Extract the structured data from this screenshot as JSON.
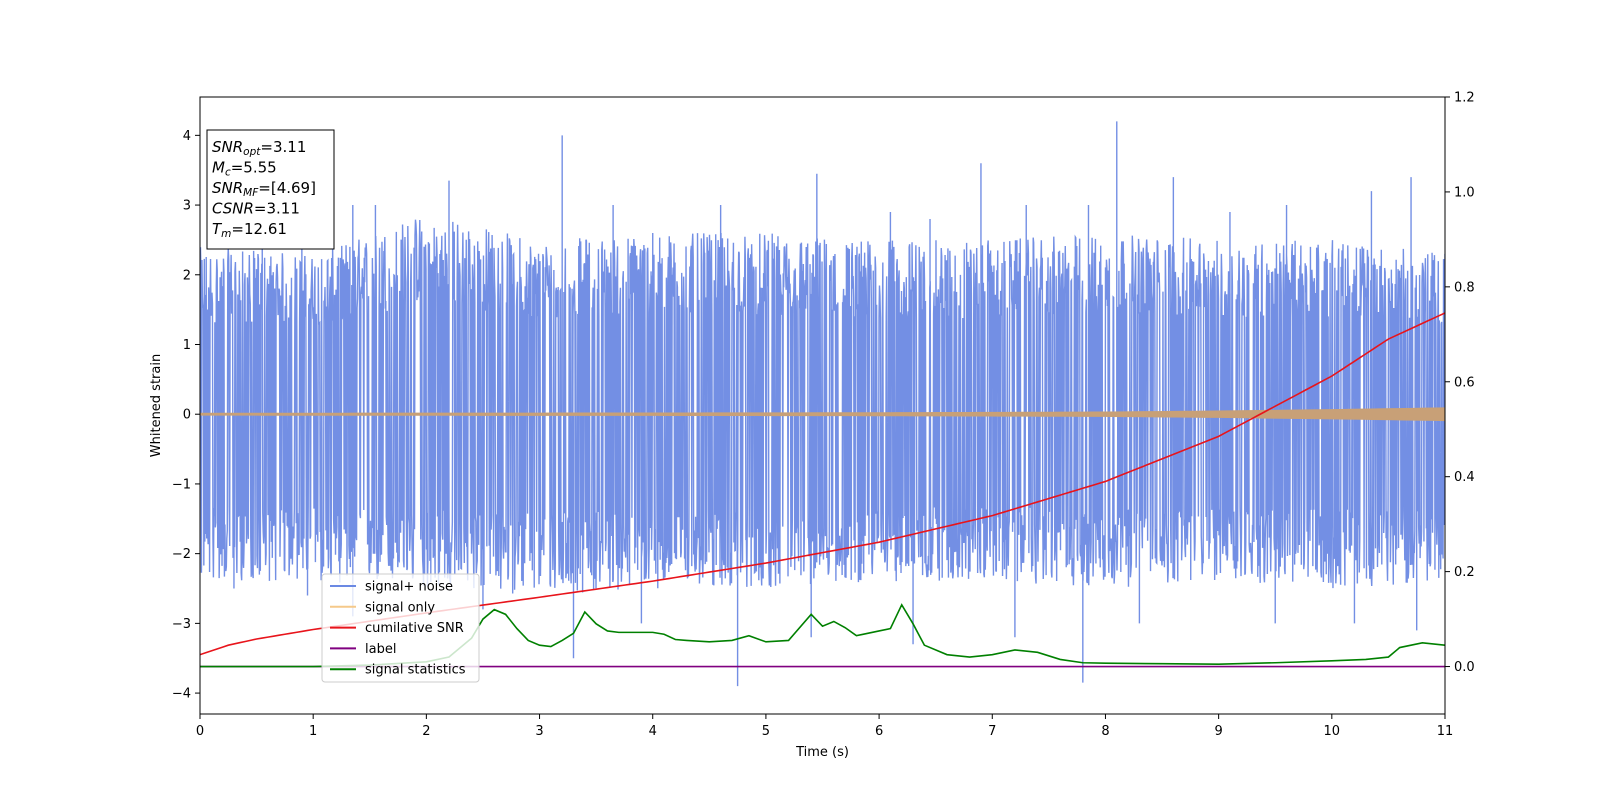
{
  "chart_data": {
    "type": "line",
    "xlabel": "Time (s)",
    "ylabel": "Whitened strain",
    "xlim": [
      0,
      11
    ],
    "ylim": [
      -4.3,
      4.55
    ],
    "y2lim": [
      -0.1,
      1.2
    ],
    "xticks": [
      0,
      1,
      2,
      3,
      4,
      5,
      6,
      7,
      8,
      9,
      10,
      11
    ],
    "yticks": [
      -4,
      -3,
      -2,
      -1,
      0,
      1,
      2,
      3,
      4
    ],
    "y2ticks": [
      0.0,
      0.2,
      0.4,
      0.6,
      0.8,
      1.0,
      1.2
    ],
    "y2tick_labels": [
      "0.0",
      "0.2",
      "0.4",
      "0.6",
      "0.8",
      "1.0",
      "1.2"
    ],
    "info_box": [
      {
        "main": "SNR",
        "sub": "opt",
        "rest": "=3.11"
      },
      {
        "main": "M",
        "sub": "c",
        "rest": "=5.55"
      },
      {
        "main": "SNR",
        "sub": "MF",
        "rest": "=[4.69]"
      },
      {
        "main": "CSNR",
        "sub": "",
        "rest": "=3.11"
      },
      {
        "main": "T",
        "sub": "m",
        "rest": "=12.61"
      }
    ],
    "legend": {
      "placement": "lower-left",
      "entries": [
        {
          "label": "signal+ noise",
          "color": "#6b89e3"
        },
        {
          "label": "signal only",
          "color": "#f5c98a"
        },
        {
          "label": "cumilative SNR",
          "color": "#e8141b"
        },
        {
          "label": "label",
          "color": "#800080"
        },
        {
          "label": "signal statistics",
          "color": "#008000"
        }
      ]
    },
    "series": [
      {
        "name": "signal+ noise",
        "axis": "left",
        "color": "#6b89e3",
        "envelope": {
          "x": [
            0,
            1,
            2,
            3,
            4,
            5,
            6,
            7,
            8,
            9,
            10,
            11
          ],
          "upper": [
            2.4,
            2.3,
            2.9,
            2.5,
            2.6,
            2.6,
            2.5,
            2.5,
            2.6,
            2.5,
            2.5,
            2.3
          ],
          "lower": [
            -2.4,
            -2.4,
            -2.5,
            -2.6,
            -2.5,
            -2.5,
            -2.4,
            -2.4,
            -2.5,
            -2.4,
            -2.5,
            -2.4
          ]
        },
        "spikes": [
          [
            0.55,
            2.4
          ],
          [
            0.9,
            2.7
          ],
          [
            1.35,
            3.0
          ],
          [
            1.55,
            3.0
          ],
          [
            2.2,
            3.35
          ],
          [
            3.2,
            4.0
          ],
          [
            3.65,
            3.0
          ],
          [
            4.0,
            2.6
          ],
          [
            4.6,
            3.0
          ],
          [
            5.45,
            3.45
          ],
          [
            6.1,
            2.9
          ],
          [
            6.45,
            2.8
          ],
          [
            6.9,
            3.6
          ],
          [
            7.3,
            3.0
          ],
          [
            7.85,
            3.0
          ],
          [
            8.1,
            4.2
          ],
          [
            8.6,
            3.4
          ],
          [
            9.1,
            2.9
          ],
          [
            9.6,
            3.0
          ],
          [
            10.35,
            3.2
          ],
          [
            10.7,
            3.4
          ],
          [
            11.0,
            2.3
          ],
          [
            0.3,
            -2.5
          ],
          [
            0.95,
            -2.6
          ],
          [
            1.35,
            -2.9
          ],
          [
            2.5,
            -2.8
          ],
          [
            3.3,
            -3.5
          ],
          [
            3.9,
            -3.0
          ],
          [
            4.75,
            -3.9
          ],
          [
            5.4,
            -3.2
          ],
          [
            6.3,
            -3.3
          ],
          [
            7.2,
            -3.2
          ],
          [
            7.8,
            -3.85
          ],
          [
            8.3,
            -3.0
          ],
          [
            9.5,
            -3.0
          ],
          [
            10.2,
            -3.0
          ],
          [
            10.75,
            -3.1
          ]
        ]
      },
      {
        "name": "signal only",
        "axis": "left",
        "color": "#f5c98a",
        "x": [
          0,
          2,
          4,
          6,
          8,
          9,
          10,
          11
        ],
        "amplitude": [
          0.012,
          0.014,
          0.016,
          0.02,
          0.03,
          0.045,
          0.065,
          0.09
        ]
      },
      {
        "name": "cumilative SNR",
        "axis": "right",
        "color": "#e8141b",
        "x": [
          0,
          0.25,
          0.5,
          1,
          2,
          3,
          4,
          5,
          6,
          7,
          8,
          9,
          10,
          10.5,
          11
        ],
        "values": [
          0.025,
          0.045,
          0.058,
          0.078,
          0.113,
          0.146,
          0.18,
          0.218,
          0.262,
          0.318,
          0.39,
          0.485,
          0.612,
          0.69,
          0.745
        ]
      },
      {
        "name": "label",
        "axis": "right",
        "color": "#800080",
        "x": [
          0,
          11
        ],
        "values": [
          0.0,
          0.0
        ]
      },
      {
        "name": "signal statistics",
        "axis": "right",
        "color": "#008000",
        "x": [
          0,
          1.0,
          1.5,
          2.0,
          2.2,
          2.4,
          2.5,
          2.6,
          2.7,
          2.8,
          2.9,
          3.0,
          3.1,
          3.2,
          3.3,
          3.4,
          3.5,
          3.6,
          3.7,
          3.8,
          4.0,
          4.1,
          4.2,
          4.3,
          4.5,
          4.7,
          4.85,
          5.0,
          5.2,
          5.4,
          5.5,
          5.6,
          5.7,
          5.8,
          5.9,
          6.0,
          6.1,
          6.2,
          6.3,
          6.4,
          6.6,
          6.8,
          7.0,
          7.2,
          7.4,
          7.6,
          7.8,
          8.0,
          8.5,
          9.0,
          9.5,
          10.0,
          10.3,
          10.5,
          10.6,
          10.8,
          11.0
        ],
        "values": [
          0.0,
          0.0,
          0.003,
          0.01,
          0.02,
          0.06,
          0.1,
          0.12,
          0.11,
          0.08,
          0.055,
          0.045,
          0.042,
          0.055,
          0.07,
          0.115,
          0.09,
          0.075,
          0.072,
          0.072,
          0.072,
          0.068,
          0.057,
          0.055,
          0.052,
          0.055,
          0.065,
          0.052,
          0.055,
          0.11,
          0.085,
          0.095,
          0.082,
          0.065,
          0.07,
          0.075,
          0.08,
          0.13,
          0.09,
          0.045,
          0.025,
          0.02,
          0.025,
          0.035,
          0.03,
          0.015,
          0.008,
          0.007,
          0.006,
          0.005,
          0.008,
          0.012,
          0.015,
          0.02,
          0.04,
          0.05,
          0.045
        ]
      }
    ]
  }
}
